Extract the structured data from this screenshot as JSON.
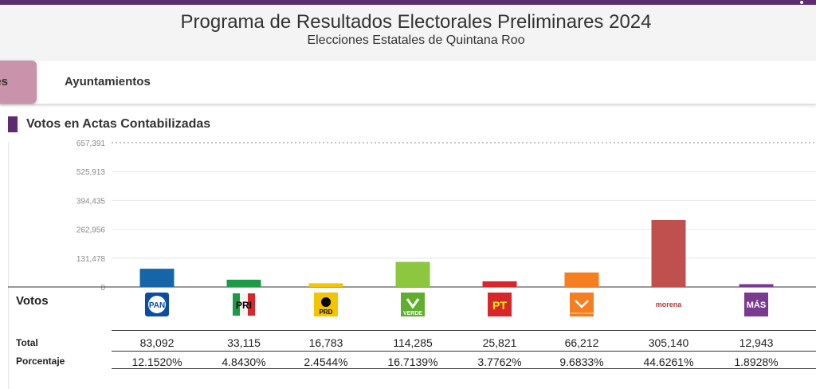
{
  "header": {
    "title": "Programa de Resultados Electorales Preliminares 2024",
    "subtitle": "Elecciones Estatales de Quintana Roo"
  },
  "tabs": [
    {
      "label": "es",
      "active": true
    },
    {
      "label": "Ayuntamientos",
      "active": false
    }
  ],
  "section": {
    "title": "Votos en Actas Contabilizadas"
  },
  "table": {
    "votos_label": "Votos",
    "total_label": "Total",
    "porcentaje_label": "Porcentaje"
  },
  "parties": [
    {
      "name": "PAN",
      "logo_text": "PAN",
      "total": "83,092",
      "pct": "12.1520%",
      "color": "#1565a8"
    },
    {
      "name": "PRI",
      "logo_text": "PRI",
      "total": "33,115",
      "pct": "4.8430%",
      "color": "#1e9a46"
    },
    {
      "name": "PRD",
      "logo_text": "PRD",
      "total": "16,783",
      "pct": "2.4544%",
      "color": "#f2c500"
    },
    {
      "name": "VERDE",
      "logo_text": "VERDE",
      "total": "114,285",
      "pct": "16.7139%",
      "color": "#8dc63f"
    },
    {
      "name": "PT",
      "logo_text": "PT",
      "total": "25,821",
      "pct": "3.7762%",
      "color": "#d7262c"
    },
    {
      "name": "Movimiento Ciudadano",
      "logo_text": "MOVIMIENTO CIUDADANO",
      "total": "66,212",
      "pct": "9.6833%",
      "color": "#f57e20"
    },
    {
      "name": "morena",
      "logo_text": "morena",
      "total": "305,140",
      "pct": "44.6261%",
      "color": "#c0504d"
    },
    {
      "name": "MÁS",
      "logo_text": "MÁS",
      "total": "12,943",
      "pct": "1.8928%",
      "color": "#7a3a8f"
    }
  ],
  "chart_data": {
    "type": "bar",
    "title": "Votos en Actas Contabilizadas",
    "categories": [
      "PAN",
      "PRI",
      "PRD",
      "VERDE",
      "PT",
      "MC",
      "morena",
      "MÁS"
    ],
    "values": [
      83092,
      33115,
      16783,
      114285,
      25821,
      66212,
      305140,
      12943
    ],
    "y_ticks": [
      "0",
      "131,478",
      "262,956",
      "394,435",
      "525,913",
      "657,391"
    ],
    "ylim": [
      0,
      657391
    ],
    "colors": [
      "#1565a8",
      "#1e9a46",
      "#f2c500",
      "#8dc63f",
      "#d7262c",
      "#f57e20",
      "#c0504d",
      "#7a3a8f"
    ]
  }
}
